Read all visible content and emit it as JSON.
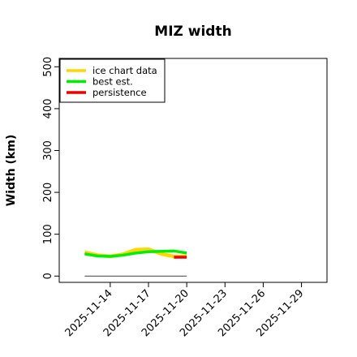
{
  "chart_data": {
    "type": "line",
    "title": "MIZ width",
    "xlabel": "",
    "ylabel": "Width (km)",
    "xlim": [
      "2025-11-10",
      "2025-12-01"
    ],
    "ylim": [
      -15,
      520
    ],
    "xticks": [
      "2025-11-14",
      "2025-11-17",
      "2025-11-20",
      "2025-11-23",
      "2025-11-26",
      "2025-11-29"
    ],
    "yticks": [
      0,
      100,
      200,
      300,
      400,
      500
    ],
    "grid": false,
    "legend_position": "top-left",
    "series": [
      {
        "name": "ice chart data",
        "color": "#ffd700",
        "x": [
          "2025-11-12",
          "2025-11-13",
          "2025-11-14",
          "2025-11-15",
          "2025-11-16",
          "2025-11-17",
          "2025-11-18",
          "2025-11-19",
          "2025-11-20"
        ],
        "y": [
          57,
          50,
          47,
          52,
          63,
          64,
          53,
          47,
          47
        ]
      },
      {
        "name": "best est.",
        "color": "#00ee00",
        "x": [
          "2025-11-12",
          "2025-11-13",
          "2025-11-14",
          "2025-11-15",
          "2025-11-16",
          "2025-11-17",
          "2025-11-18",
          "2025-11-19",
          "2025-11-20"
        ],
        "y": [
          53,
          48,
          47,
          50,
          55,
          58,
          59,
          60,
          55
        ]
      },
      {
        "name": "persistence",
        "color": "#ee0000",
        "x": [
          "2025-11-19",
          "2025-11-20"
        ],
        "y": [
          45,
          45
        ]
      }
    ],
    "reference_line": {
      "color": "#555555",
      "x": [
        "2025-11-12",
        "2025-11-20"
      ],
      "y": [
        0,
        0
      ]
    }
  }
}
